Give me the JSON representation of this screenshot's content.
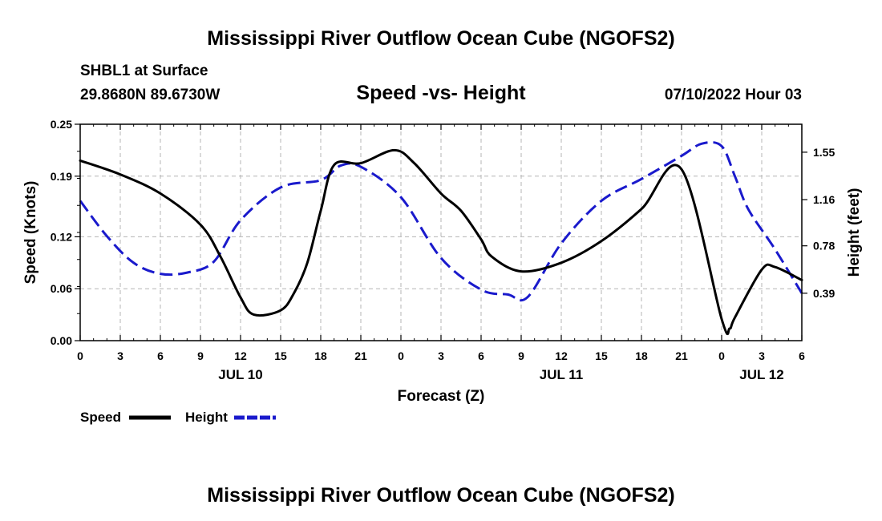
{
  "chart_data": {
    "type": "line",
    "title": "Mississippi River Outflow Ocean Cube (NGOFS2)",
    "subtitle": "Speed -vs- Height",
    "station": "SHBL1 at Surface",
    "coords": "29.8680N  89.6730W",
    "timestamp": "07/10/2022 Hour 03",
    "footer_title": "Mississippi River Outflow Ocean Cube (NGOFS2)",
    "xlabel": "Forecast (Z)",
    "ylabel_left": "Speed (Knots)",
    "ylabel_right": "Height (feet)",
    "x_unit": "hours since 07/10 00Z",
    "xlim": [
      0,
      54
    ],
    "x_ticks": [
      0,
      3,
      6,
      9,
      12,
      15,
      18,
      21,
      24,
      27,
      30,
      33,
      36,
      39,
      42,
      45,
      48,
      51,
      54
    ],
    "x_tick_labels": [
      "0",
      "3",
      "6",
      "9",
      "12",
      "15",
      "18",
      "21",
      "0",
      "3",
      "6",
      "9",
      "12",
      "15",
      "18",
      "21",
      "0",
      "3",
      "6"
    ],
    "date_labels": [
      {
        "x": 12,
        "label": "JUL 10"
      },
      {
        "x": 36,
        "label": "JUL 11"
      },
      {
        "x": 51,
        "label": "JUL 12"
      }
    ],
    "ylim_left": [
      0,
      0.25
    ],
    "y_ticks_left": [
      0,
      0.06,
      0.12,
      0.19,
      0.25
    ],
    "y_tick_labels_left": [
      "0.00",
      "0.06",
      "0.12",
      "0.19",
      "0.25"
    ],
    "ylim_right": [
      0,
      1.78
    ],
    "y_ticks_right": [
      0.39,
      0.78,
      1.16,
      1.55
    ],
    "y_tick_labels_right": [
      "0.39",
      "0.78",
      "1.16",
      "1.55"
    ],
    "grid": true,
    "legend_position": "bottom-left",
    "series": [
      {
        "name": "Speed",
        "axis": "left",
        "color": "#000000",
        "dashed": false,
        "x": [
          0,
          3,
          6,
          9,
          10.5,
          12,
          13,
          15,
          16,
          17,
          18,
          19,
          21,
          23.5,
          25,
          27,
          28.5,
          30,
          30.8,
          33,
          36,
          39,
          42,
          45,
          48,
          48.6,
          49,
          51,
          52,
          54
        ],
        "y": [
          0.208,
          0.192,
          0.17,
          0.134,
          0.097,
          0.05,
          0.03,
          0.035,
          0.055,
          0.09,
          0.15,
          0.203,
          0.205,
          0.22,
          0.205,
          0.17,
          0.15,
          0.117,
          0.097,
          0.08,
          0.09,
          0.115,
          0.152,
          0.198,
          0.025,
          0.014,
          0.027,
          0.082,
          0.085,
          0.07
        ]
      },
      {
        "name": "Height",
        "axis": "right",
        "color": "#1a1acc",
        "dashed": true,
        "x": [
          0,
          2,
          4,
          6,
          8,
          10,
          12,
          15,
          18,
          19.5,
          21,
          24,
          27,
          30,
          32,
          33.5,
          36,
          39,
          42,
          45,
          46.5,
          48,
          49,
          50,
          52,
          54
        ],
        "y": [
          1.15,
          0.86,
          0.64,
          0.55,
          0.56,
          0.65,
          0.99,
          1.26,
          1.32,
          1.44,
          1.43,
          1.18,
          0.68,
          0.42,
          0.38,
          0.36,
          0.8,
          1.15,
          1.33,
          1.52,
          1.62,
          1.6,
          1.35,
          1.08,
          0.75,
          0.39
        ]
      }
    ]
  }
}
